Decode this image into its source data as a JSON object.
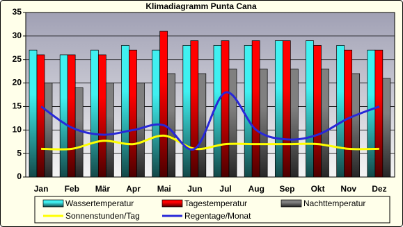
{
  "chart_data": {
    "type": "bar",
    "title": "Klimadiagramm Punta Cana",
    "categories": [
      "Jan",
      "Feb",
      "Mär",
      "Apr",
      "Mai",
      "Jun",
      "Jul",
      "Aug",
      "Sep",
      "Okt",
      "Nov",
      "Dez"
    ],
    "series": [
      {
        "name": "Wassertemperatur",
        "type": "bar",
        "color": "#40f0f0",
        "values": [
          27,
          26,
          27,
          28,
          27,
          28,
          28,
          28,
          29,
          29,
          28,
          27
        ]
      },
      {
        "name": "Tagestemperatur",
        "type": "bar",
        "color": "#ff0000",
        "values": [
          26,
          26,
          26,
          27,
          31,
          29,
          29,
          29,
          29,
          28,
          27,
          27
        ]
      },
      {
        "name": "Nachttemperatur",
        "type": "bar",
        "color": "#808080",
        "values": [
          20,
          19,
          20,
          20,
          22,
          22,
          23,
          23,
          23,
          23,
          22,
          21
        ]
      },
      {
        "name": "Sonnenstunden/Tag",
        "type": "line",
        "color": "#ffff00",
        "values": [
          6,
          6,
          7.7,
          7,
          8.8,
          6,
          7,
          7,
          7,
          7,
          6,
          6
        ]
      },
      {
        "name": "Regentage/Monat",
        "type": "line",
        "color": "#2828d8",
        "values": [
          15,
          10.5,
          9,
          10,
          11,
          6,
          18,
          10,
          8,
          9,
          12.5,
          15
        ]
      }
    ],
    "ylim": [
      0,
      35
    ],
    "yticks": [
      0,
      5,
      10,
      15,
      20,
      25,
      30,
      35
    ],
    "grid": true
  }
}
